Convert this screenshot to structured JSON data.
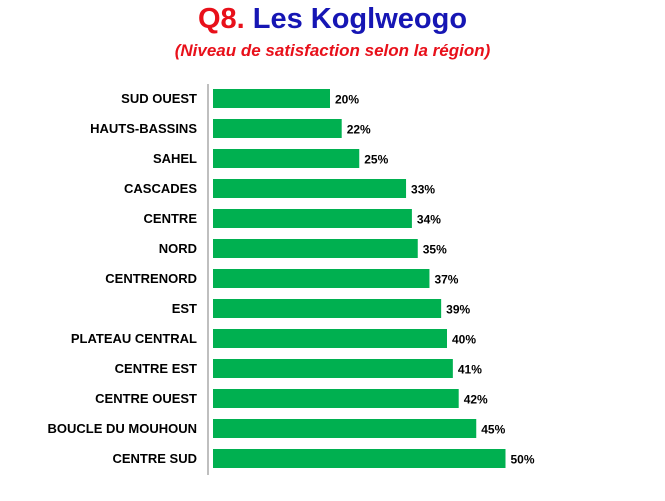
{
  "header": {
    "title_prefix": "Q8.",
    "title_main": "Les Koglweogo",
    "subtitle": "(Niveau de satisfaction selon la région)"
  },
  "colors": {
    "bar": "#00b050",
    "title_prefix": "#e8101a",
    "title_main": "#1616b4",
    "subtitle": "#e8101a"
  },
  "chart_data": {
    "type": "bar",
    "orientation": "horizontal",
    "categories": [
      "SUD OUEST",
      "HAUTS-BASSINS",
      "SAHEL",
      "CASCADES",
      "CENTRE",
      "NORD",
      "CENTRENORD",
      "EST",
      "PLATEAU CENTRAL",
      "CENTRE EST",
      "CENTRE OUEST",
      "BOUCLE DU MOUHOUN",
      "CENTRE SUD"
    ],
    "values": [
      20,
      22,
      25,
      33,
      34,
      35,
      37,
      39,
      40,
      41,
      42,
      45,
      50
    ],
    "value_labels": [
      "20%",
      "22%",
      "25%",
      "33%",
      "34%",
      "35%",
      "37%",
      "39%",
      "40%",
      "41%",
      "42%",
      "45%",
      "50%"
    ],
    "title": "Q8. Les Koglweogo",
    "subtitle": "(Niveau de satisfaction selon la région)",
    "xlabel": "",
    "ylabel": "",
    "unit": "%",
    "xlim": [
      0,
      50
    ],
    "grid": false,
    "legend": "none"
  }
}
